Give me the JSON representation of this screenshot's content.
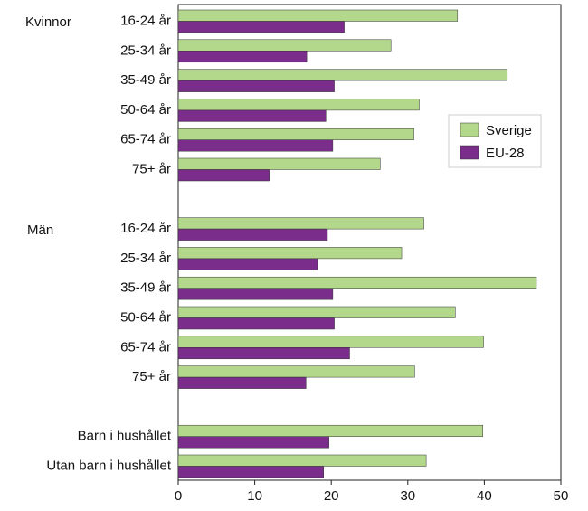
{
  "chart_data": {
    "type": "bar",
    "orientation": "horizontal",
    "title": "",
    "xlabel": "",
    "ylabel": "",
    "xlim": [
      0,
      50
    ],
    "xticks": [
      0,
      10,
      20,
      30,
      40,
      50
    ],
    "grid": false,
    "legend_position": "right",
    "series": [
      {
        "name": "Sverige",
        "color": "#b3d88c"
      },
      {
        "name": "EU-28",
        "color": "#7a2d8a"
      }
    ],
    "groups": [
      {
        "heading": "Kvinnor",
        "categories": [
          {
            "label": "16-24 år",
            "values": [
              36.5,
              21.7
            ]
          },
          {
            "label": "25-34 år",
            "values": [
              27.8,
              16.8
            ]
          },
          {
            "label": "35-49 år",
            "values": [
              43.0,
              20.4
            ]
          },
          {
            "label": "50-64 år",
            "values": [
              31.5,
              19.3
            ]
          },
          {
            "label": "65-74 år",
            "values": [
              30.8,
              20.2
            ]
          },
          {
            "label": "75+ år",
            "values": [
              26.4,
              11.9
            ]
          }
        ]
      },
      {
        "heading": "Män",
        "categories": [
          {
            "label": "16-24 år",
            "values": [
              32.1,
              19.5
            ]
          },
          {
            "label": "25-34 år",
            "values": [
              29.2,
              18.2
            ]
          },
          {
            "label": "35-49 år",
            "values": [
              46.8,
              20.2
            ]
          },
          {
            "label": "50-64 år",
            "values": [
              36.2,
              20.4
            ]
          },
          {
            "label": "65-74 år",
            "values": [
              39.9,
              22.4
            ]
          },
          {
            "label": "75+ år",
            "values": [
              30.9,
              16.7
            ]
          }
        ]
      },
      {
        "heading": "",
        "categories": [
          {
            "label": "Barn i hushållet",
            "values": [
              39.8,
              19.7
            ]
          },
          {
            "label": "Utan barn i hushållet",
            "values": [
              32.4,
              19.0
            ]
          }
        ]
      }
    ]
  }
}
